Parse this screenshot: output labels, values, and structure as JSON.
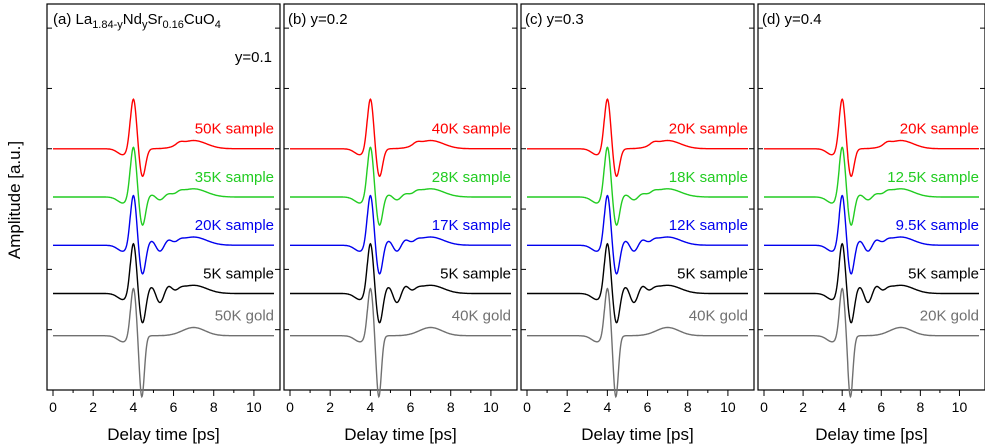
{
  "figure": {
    "ylabel": "Amplitude [a.u.]",
    "xlabel": "Delay time [ps]"
  },
  "colors": {
    "red": "#ff0000",
    "green": "#22cc22",
    "blue": "#0000ee",
    "black": "#000000",
    "gray": "#707070"
  },
  "chart_data": [
    {
      "type": "line",
      "panel": "(a)",
      "title": "(a) La1.84-yNdySr0.16CuO4",
      "title_main": "(a) La",
      "title_sub1": "1.84-y",
      "title_mid1": "Nd",
      "title_sub2": "y",
      "title_mid2": "Sr",
      "title_sub3": "0.16",
      "title_mid3": "CuO",
      "title_sub4": "4",
      "subtitle": "y=0.1",
      "xlabel": "Delay time [ps]",
      "xlim": [
        0,
        11
      ],
      "xticks": [
        "0",
        "2",
        "4",
        "6",
        "8",
        "10"
      ],
      "ylim": [
        0,
        6
      ],
      "yticks_minor": 6,
      "series": [
        {
          "name": "50K sample",
          "color": "#ff0000",
          "offset": 4.0,
          "type": "sample"
        },
        {
          "name": "35K sample",
          "color": "#22cc22",
          "offset": 3.2,
          "type": "sample"
        },
        {
          "name": "20K sample",
          "color": "#0000ee",
          "offset": 2.4,
          "type": "sample"
        },
        {
          "name": "5K sample",
          "color": "#000000",
          "offset": 1.6,
          "type": "sample"
        },
        {
          "name": "50K gold",
          "color": "#707070",
          "offset": 0.9,
          "type": "gold"
        }
      ]
    },
    {
      "type": "line",
      "panel": "(b)",
      "title": "(b) y=0.2",
      "xlabel": "Delay time [ps]",
      "xlim": [
        0,
        11
      ],
      "xticks": [
        "0",
        "2",
        "4",
        "6",
        "8",
        "10"
      ],
      "ylim": [
        0,
        6
      ],
      "series": [
        {
          "name": "40K sample",
          "color": "#ff0000",
          "offset": 4.0,
          "type": "sample"
        },
        {
          "name": "28K sample",
          "color": "#22cc22",
          "offset": 3.2,
          "type": "sample"
        },
        {
          "name": "17K sample",
          "color": "#0000ee",
          "offset": 2.4,
          "type": "sample"
        },
        {
          "name": "5K sample",
          "color": "#000000",
          "offset": 1.6,
          "type": "sample"
        },
        {
          "name": "40K gold",
          "color": "#707070",
          "offset": 0.9,
          "type": "gold"
        }
      ]
    },
    {
      "type": "line",
      "panel": "(c)",
      "title": "(c) y=0.3",
      "xlabel": "Delay time [ps]",
      "xlim": [
        0,
        11
      ],
      "xticks": [
        "0",
        "2",
        "4",
        "6",
        "8",
        "10"
      ],
      "ylim": [
        0,
        6
      ],
      "series": [
        {
          "name": "20K sample",
          "color": "#ff0000",
          "offset": 4.0,
          "type": "sample"
        },
        {
          "name": "18K sample",
          "color": "#22cc22",
          "offset": 3.2,
          "type": "sample"
        },
        {
          "name": "12K sample",
          "color": "#0000ee",
          "offset": 2.4,
          "type": "sample"
        },
        {
          "name": "5K sample",
          "color": "#000000",
          "offset": 1.6,
          "type": "sample"
        },
        {
          "name": "40K gold",
          "color": "#707070",
          "offset": 0.9,
          "type": "gold"
        }
      ]
    },
    {
      "type": "line",
      "panel": "(d)",
      "title": "(d) y=0.4",
      "xlabel": "Delay time [ps]",
      "xlim": [
        0,
        11
      ],
      "xticks": [
        "0",
        "2",
        "4",
        "6",
        "8",
        "10"
      ],
      "ylim": [
        0,
        6
      ],
      "series": [
        {
          "name": "20K sample",
          "color": "#ff0000",
          "offset": 4.0,
          "type": "sample"
        },
        {
          "name": "12.5K sample",
          "color": "#22cc22",
          "offset": 3.2,
          "type": "sample"
        },
        {
          "name": "9.5K sample",
          "color": "#0000ee",
          "offset": 2.4,
          "type": "sample"
        },
        {
          "name": "5K sample",
          "color": "#000000",
          "offset": 1.6,
          "type": "sample"
        },
        {
          "name": "20K gold",
          "color": "#707070",
          "offset": 0.9,
          "type": "gold"
        }
      ]
    }
  ]
}
